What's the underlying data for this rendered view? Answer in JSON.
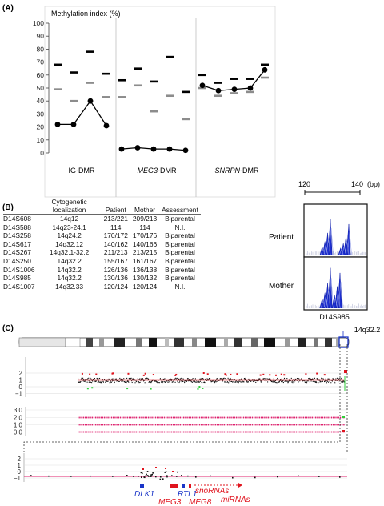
{
  "panel_a": {
    "label": "(A)",
    "ylabel": "Methylation index (%)",
    "yticks": [
      0,
      10,
      20,
      30,
      40,
      50,
      60,
      70,
      80,
      90,
      100
    ],
    "groups": [
      {
        "label_plain": "IG-DMR",
        "label_italic": "",
        "label_suffix": ""
      },
      {
        "label_plain": "",
        "label_italic": "MEG3",
        "label_suffix": "-DMR"
      },
      {
        "label_plain": "",
        "label_italic": "SNRPN",
        "label_suffix": "-DMR"
      }
    ]
  },
  "chart_data": {
    "type": "line",
    "ylabel": "Methylation index (%)",
    "ylim": [
      0,
      100
    ],
    "groups": [
      "IG-DMR",
      "MEG3-DMR",
      "SNRPN-DMR"
    ],
    "series": [
      {
        "values": [
          [
            22,
            22,
            40,
            21
          ],
          [
            3,
            4,
            3,
            3,
            2
          ],
          [
            52,
            48,
            49,
            50,
            64
          ]
        ]
      }
    ],
    "normal_max": [
      [
        68,
        62,
        78,
        61
      ],
      [
        56,
        65,
        55,
        74,
        47
      ],
      [
        60,
        54,
        57,
        57,
        68
      ]
    ],
    "normal_min": [
      [
        49,
        40,
        54,
        43
      ],
      [
        43,
        52,
        32,
        44,
        26
      ],
      [
        50,
        44,
        46,
        47,
        58
      ]
    ]
  },
  "panel_b": {
    "label": "(B)",
    "headers": [
      "",
      "Cytogenetic localization",
      "Patient",
      "Mother",
      "Assessment"
    ],
    "rows": [
      [
        "D14S608",
        "14q12",
        "213/221",
        "209/213",
        "Biparental"
      ],
      [
        "D14S588",
        "14q23-24.1",
        "114",
        "114",
        "N.I."
      ],
      [
        "D14S258",
        "14q24.2",
        "170/172",
        "170/176",
        "Biparental"
      ],
      [
        "D14S617",
        "14q32.12",
        "140/162",
        "140/166",
        "Biparental"
      ],
      [
        "D14S267",
        "14q32.1-32.2",
        "211/213",
        "213/215",
        "Biparental"
      ],
      [
        "D14S250",
        "14q32.2",
        "155/167",
        "161/167",
        "Biparental"
      ],
      [
        "D14S1006",
        "14q32.2",
        "126/136",
        "136/138",
        "Biparental"
      ],
      [
        "D14S985",
        "14q32.2",
        "130/136",
        "130/132",
        "Biparental"
      ],
      [
        "D14S1007",
        "14q32.33",
        "120/124",
        "120/124",
        "N.I."
      ]
    ],
    "scale_left": "120",
    "scale_right": "140",
    "scale_unit": "(bp)",
    "patient_label": "Patient",
    "mother_label": "Mother",
    "marker_label": "D14S985"
  },
  "panel_c": {
    "label": "(C)",
    "band_label": "14q32.2",
    "cn_ticks": [
      "2",
      "1",
      "0",
      "−1"
    ],
    "baf_ticks": [
      "3.0",
      "2.0",
      "1.0",
      "0.0"
    ],
    "zoom_ticks": [
      "2",
      "1",
      "0",
      "−1"
    ],
    "genes": {
      "dlk1": "DLK1",
      "meg3": "MEG3",
      "rtl1": "RTL1",
      "meg8": "MEG8",
      "snornas": "snoRNAs",
      "mirnas": "miRNAs"
    },
    "colors": {
      "blue": "#1a35c8",
      "red": "#e0141e",
      "pink": "#e0206e"
    }
  }
}
